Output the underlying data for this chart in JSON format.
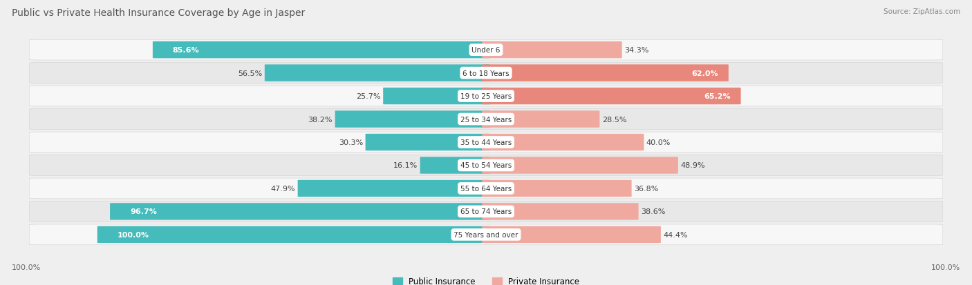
{
  "title": "Public vs Private Health Insurance Coverage by Age in Jasper",
  "source": "Source: ZipAtlas.com",
  "categories": [
    "Under 6",
    "6 to 18 Years",
    "19 to 25 Years",
    "25 to 34 Years",
    "35 to 44 Years",
    "45 to 54 Years",
    "55 to 64 Years",
    "65 to 74 Years",
    "75 Years and over"
  ],
  "public_values": [
    85.6,
    56.5,
    25.7,
    38.2,
    30.3,
    16.1,
    47.9,
    96.7,
    100.0
  ],
  "private_values": [
    34.3,
    62.0,
    65.2,
    28.5,
    40.0,
    48.9,
    36.8,
    38.6,
    44.4
  ],
  "public_color": "#46BBBC",
  "private_color": "#E8877B",
  "private_color_light": "#F0A99F",
  "bg_color": "#EFEFEF",
  "row_color_light": "#F7F7F7",
  "row_color_dark": "#E8E8E8",
  "title_fontsize": 10,
  "label_fontsize": 8,
  "source_fontsize": 7.5,
  "legend_fontsize": 8.5,
  "value_fontsize": 8,
  "axis_label": "100.0%"
}
